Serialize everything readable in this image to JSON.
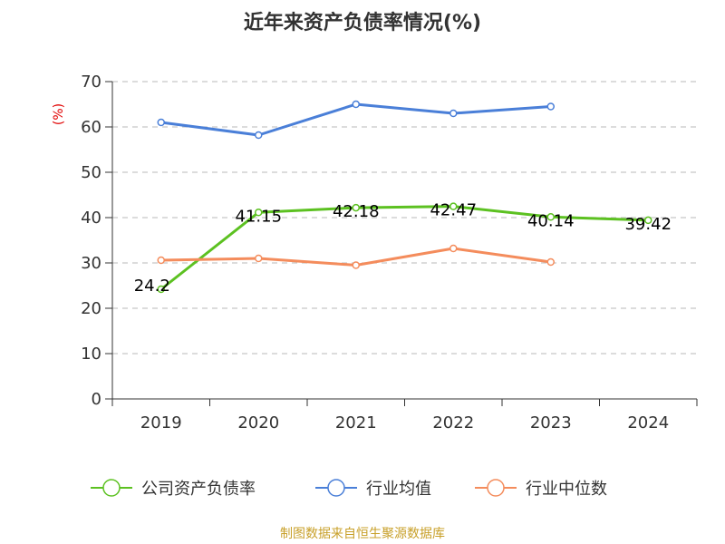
{
  "chart_data": {
    "type": "line",
    "title": "近年来资产负债率情况(%)",
    "ylabel": "(%)",
    "xlabel": "",
    "categories": [
      "2019",
      "2020",
      "2021",
      "2022",
      "2023",
      "2024"
    ],
    "ylim": [
      0,
      70
    ],
    "yticks": [
      0,
      10,
      20,
      30,
      40,
      50,
      60,
      70
    ],
    "grid": true,
    "legend_position": "bottom",
    "series": [
      {
        "name": "公司资产负债率",
        "color": "#5cc121",
        "values": [
          24.2,
          41.15,
          42.18,
          42.47,
          40.14,
          39.42
        ],
        "labels": [
          "24.2",
          "41.15",
          "42.18",
          "42.47",
          "40.14",
          "39.42"
        ]
      },
      {
        "name": "行业均值",
        "color": "#4a7fd8",
        "values": [
          61.0,
          58.2,
          65.0,
          63.0,
          64.5,
          null
        ]
      },
      {
        "name": "行业中位数",
        "color": "#f48c5c",
        "values": [
          30.6,
          31.0,
          29.5,
          33.2,
          30.2,
          null
        ]
      }
    ]
  },
  "source": "制图数据来自恒生聚源数据库"
}
